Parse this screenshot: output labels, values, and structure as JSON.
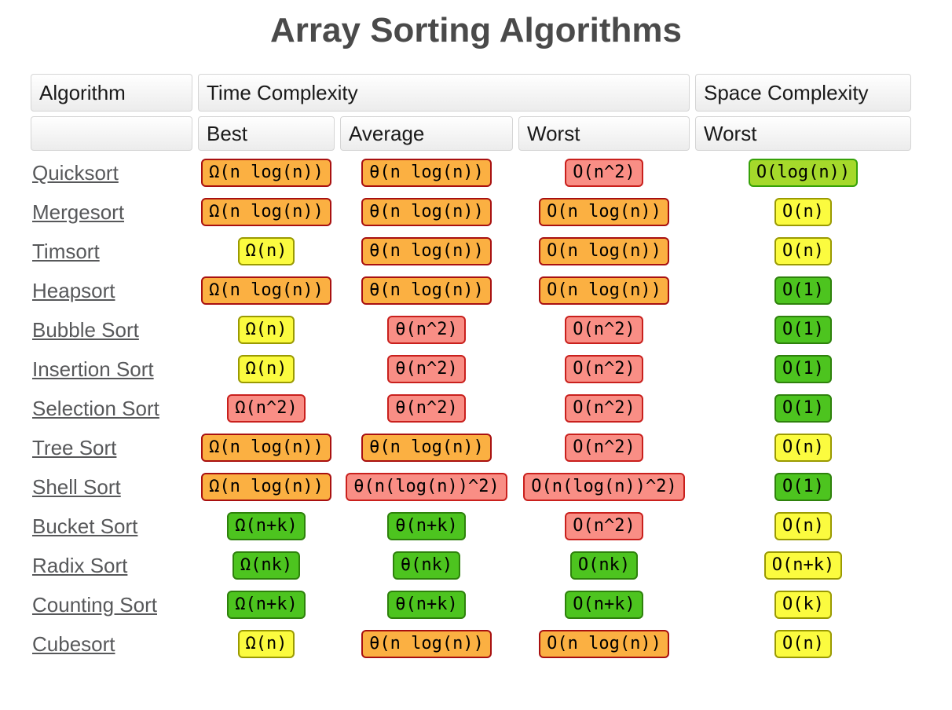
{
  "title": "Array Sorting Algorithms",
  "theme": {
    "title_color": "#4a4a4a",
    "link_color": "#57585a",
    "header_border": "#d5d5d5"
  },
  "colors": {
    "orange": {
      "bg": "#fbb042",
      "border": "#a81010"
    },
    "red": {
      "bg": "#f98e85",
      "border": "#c9201d"
    },
    "yellow": {
      "bg": "#fbfb3f",
      "border": "#9a9a02"
    },
    "yellowgreen": {
      "bg": "#a5d92b",
      "border": "#36a108"
    },
    "green": {
      "bg": "#4dc41f",
      "border": "#2e810c"
    }
  },
  "table": {
    "header": {
      "algorithm": "Algorithm",
      "time_complexity": "Time Complexity",
      "space_complexity": "Space Complexity",
      "sub_best": "Best",
      "sub_average": "Average",
      "sub_worst": "Worst",
      "sub_space_worst": "Worst"
    },
    "rows": [
      {
        "name": "Quicksort",
        "best": {
          "text": "Ω(n log(n))",
          "level": "orange"
        },
        "average": {
          "text": "θ(n log(n))",
          "level": "orange"
        },
        "worst": {
          "text": "O(n^2)",
          "level": "red"
        },
        "space": {
          "text": "O(log(n))",
          "level": "yellowgreen"
        }
      },
      {
        "name": "Mergesort",
        "best": {
          "text": "Ω(n log(n))",
          "level": "orange"
        },
        "average": {
          "text": "θ(n log(n))",
          "level": "orange"
        },
        "worst": {
          "text": "O(n log(n))",
          "level": "orange"
        },
        "space": {
          "text": "O(n)",
          "level": "yellow"
        }
      },
      {
        "name": "Timsort",
        "best": {
          "text": "Ω(n)",
          "level": "yellow"
        },
        "average": {
          "text": "θ(n log(n))",
          "level": "orange"
        },
        "worst": {
          "text": "O(n log(n))",
          "level": "orange"
        },
        "space": {
          "text": "O(n)",
          "level": "yellow"
        }
      },
      {
        "name": "Heapsort",
        "best": {
          "text": "Ω(n log(n))",
          "level": "orange"
        },
        "average": {
          "text": "θ(n log(n))",
          "level": "orange"
        },
        "worst": {
          "text": "O(n log(n))",
          "level": "orange"
        },
        "space": {
          "text": "O(1)",
          "level": "green"
        }
      },
      {
        "name": "Bubble Sort",
        "best": {
          "text": "Ω(n)",
          "level": "yellow"
        },
        "average": {
          "text": "θ(n^2)",
          "level": "red"
        },
        "worst": {
          "text": "O(n^2)",
          "level": "red"
        },
        "space": {
          "text": "O(1)",
          "level": "green"
        }
      },
      {
        "name": "Insertion Sort",
        "best": {
          "text": "Ω(n)",
          "level": "yellow"
        },
        "average": {
          "text": "θ(n^2)",
          "level": "red"
        },
        "worst": {
          "text": "O(n^2)",
          "level": "red"
        },
        "space": {
          "text": "O(1)",
          "level": "green"
        }
      },
      {
        "name": "Selection Sort",
        "best": {
          "text": "Ω(n^2)",
          "level": "red"
        },
        "average": {
          "text": "θ(n^2)",
          "level": "red"
        },
        "worst": {
          "text": "O(n^2)",
          "level": "red"
        },
        "space": {
          "text": "O(1)",
          "level": "green"
        }
      },
      {
        "name": "Tree Sort",
        "best": {
          "text": "Ω(n log(n))",
          "level": "orange"
        },
        "average": {
          "text": "θ(n log(n))",
          "level": "orange"
        },
        "worst": {
          "text": "O(n^2)",
          "level": "red"
        },
        "space": {
          "text": "O(n)",
          "level": "yellow"
        }
      },
      {
        "name": "Shell Sort",
        "best": {
          "text": "Ω(n log(n))",
          "level": "orange"
        },
        "average": {
          "text": "θ(n(log(n))^2)",
          "level": "red"
        },
        "worst": {
          "text": "O(n(log(n))^2)",
          "level": "red"
        },
        "space": {
          "text": "O(1)",
          "level": "green"
        }
      },
      {
        "name": "Bucket Sort",
        "best": {
          "text": "Ω(n+k)",
          "level": "green"
        },
        "average": {
          "text": "θ(n+k)",
          "level": "green"
        },
        "worst": {
          "text": "O(n^2)",
          "level": "red"
        },
        "space": {
          "text": "O(n)",
          "level": "yellow"
        }
      },
      {
        "name": "Radix Sort",
        "best": {
          "text": "Ω(nk)",
          "level": "green"
        },
        "average": {
          "text": "θ(nk)",
          "level": "green"
        },
        "worst": {
          "text": "O(nk)",
          "level": "green"
        },
        "space": {
          "text": "O(n+k)",
          "level": "yellow"
        }
      },
      {
        "name": "Counting Sort",
        "best": {
          "text": "Ω(n+k)",
          "level": "green"
        },
        "average": {
          "text": "θ(n+k)",
          "level": "green"
        },
        "worst": {
          "text": "O(n+k)",
          "level": "green"
        },
        "space": {
          "text": "O(k)",
          "level": "yellow"
        }
      },
      {
        "name": "Cubesort",
        "best": {
          "text": "Ω(n)",
          "level": "yellow"
        },
        "average": {
          "text": "θ(n log(n))",
          "level": "orange"
        },
        "worst": {
          "text": "O(n log(n))",
          "level": "orange"
        },
        "space": {
          "text": "O(n)",
          "level": "yellow"
        }
      }
    ]
  }
}
